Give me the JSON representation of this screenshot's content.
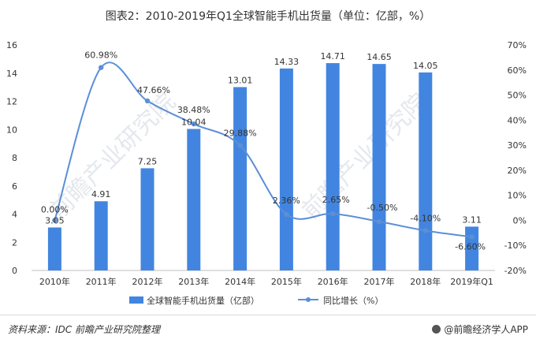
{
  "header": {
    "title": "图表2：2010-2019年Q1全球智能手机出货量（单位：亿部，%）"
  },
  "footer": {
    "source": "资料来源：IDC 前瞻产业研究院整理",
    "brand": "@前瞻经济学人APP"
  },
  "watermark": {
    "text": "前瞻产业研究院"
  },
  "chart_data": {
    "type": "bar",
    "categories": [
      "2010年",
      "2011年",
      "2012年",
      "2013年",
      "2014年",
      "2015年",
      "2016年",
      "2017年",
      "2018年",
      "2019年Q1"
    ],
    "series": [
      {
        "name": "全球智能手机出货量（亿部）",
        "type": "bar",
        "axis": "left",
        "color": "#4285e0",
        "values": [
          3.05,
          4.91,
          7.25,
          10.04,
          13.01,
          14.33,
          14.71,
          14.65,
          14.05,
          3.11
        ]
      },
      {
        "name": "同比增长（%）",
        "type": "line",
        "axis": "right",
        "color": "#5b8fd8",
        "values": [
          0.0,
          60.98,
          47.66,
          38.48,
          29.88,
          2.36,
          2.65,
          -0.5,
          -4.1,
          -6.6
        ]
      }
    ],
    "left_axis": {
      "min": 0,
      "max": 16,
      "ticks": [
        0,
        2,
        4,
        6,
        8,
        10,
        12,
        14,
        16
      ]
    },
    "right_axis": {
      "min": -20,
      "max": 70,
      "ticks": [
        "-20%",
        "-10%",
        "0%",
        "10%",
        "20%",
        "30%",
        "40%",
        "50%",
        "60%",
        "70%"
      ]
    },
    "bar_labels": [
      "3.05",
      "4.91",
      "7.25",
      "10.04",
      "13.01",
      "14.33",
      "14.71",
      "14.65",
      "14.05",
      "3.11"
    ],
    "line_labels": [
      "0.00%",
      "60.98%",
      "47.66%",
      "38.48%",
      "29.88%",
      "2.36%",
      "2.65%",
      "-0.50%",
      "-4.10%",
      "-6.60%"
    ],
    "legend": [
      "全球智能手机出货量（亿部）",
      "同比增长（%）"
    ],
    "legend_position": "bottom",
    "grid": false
  }
}
